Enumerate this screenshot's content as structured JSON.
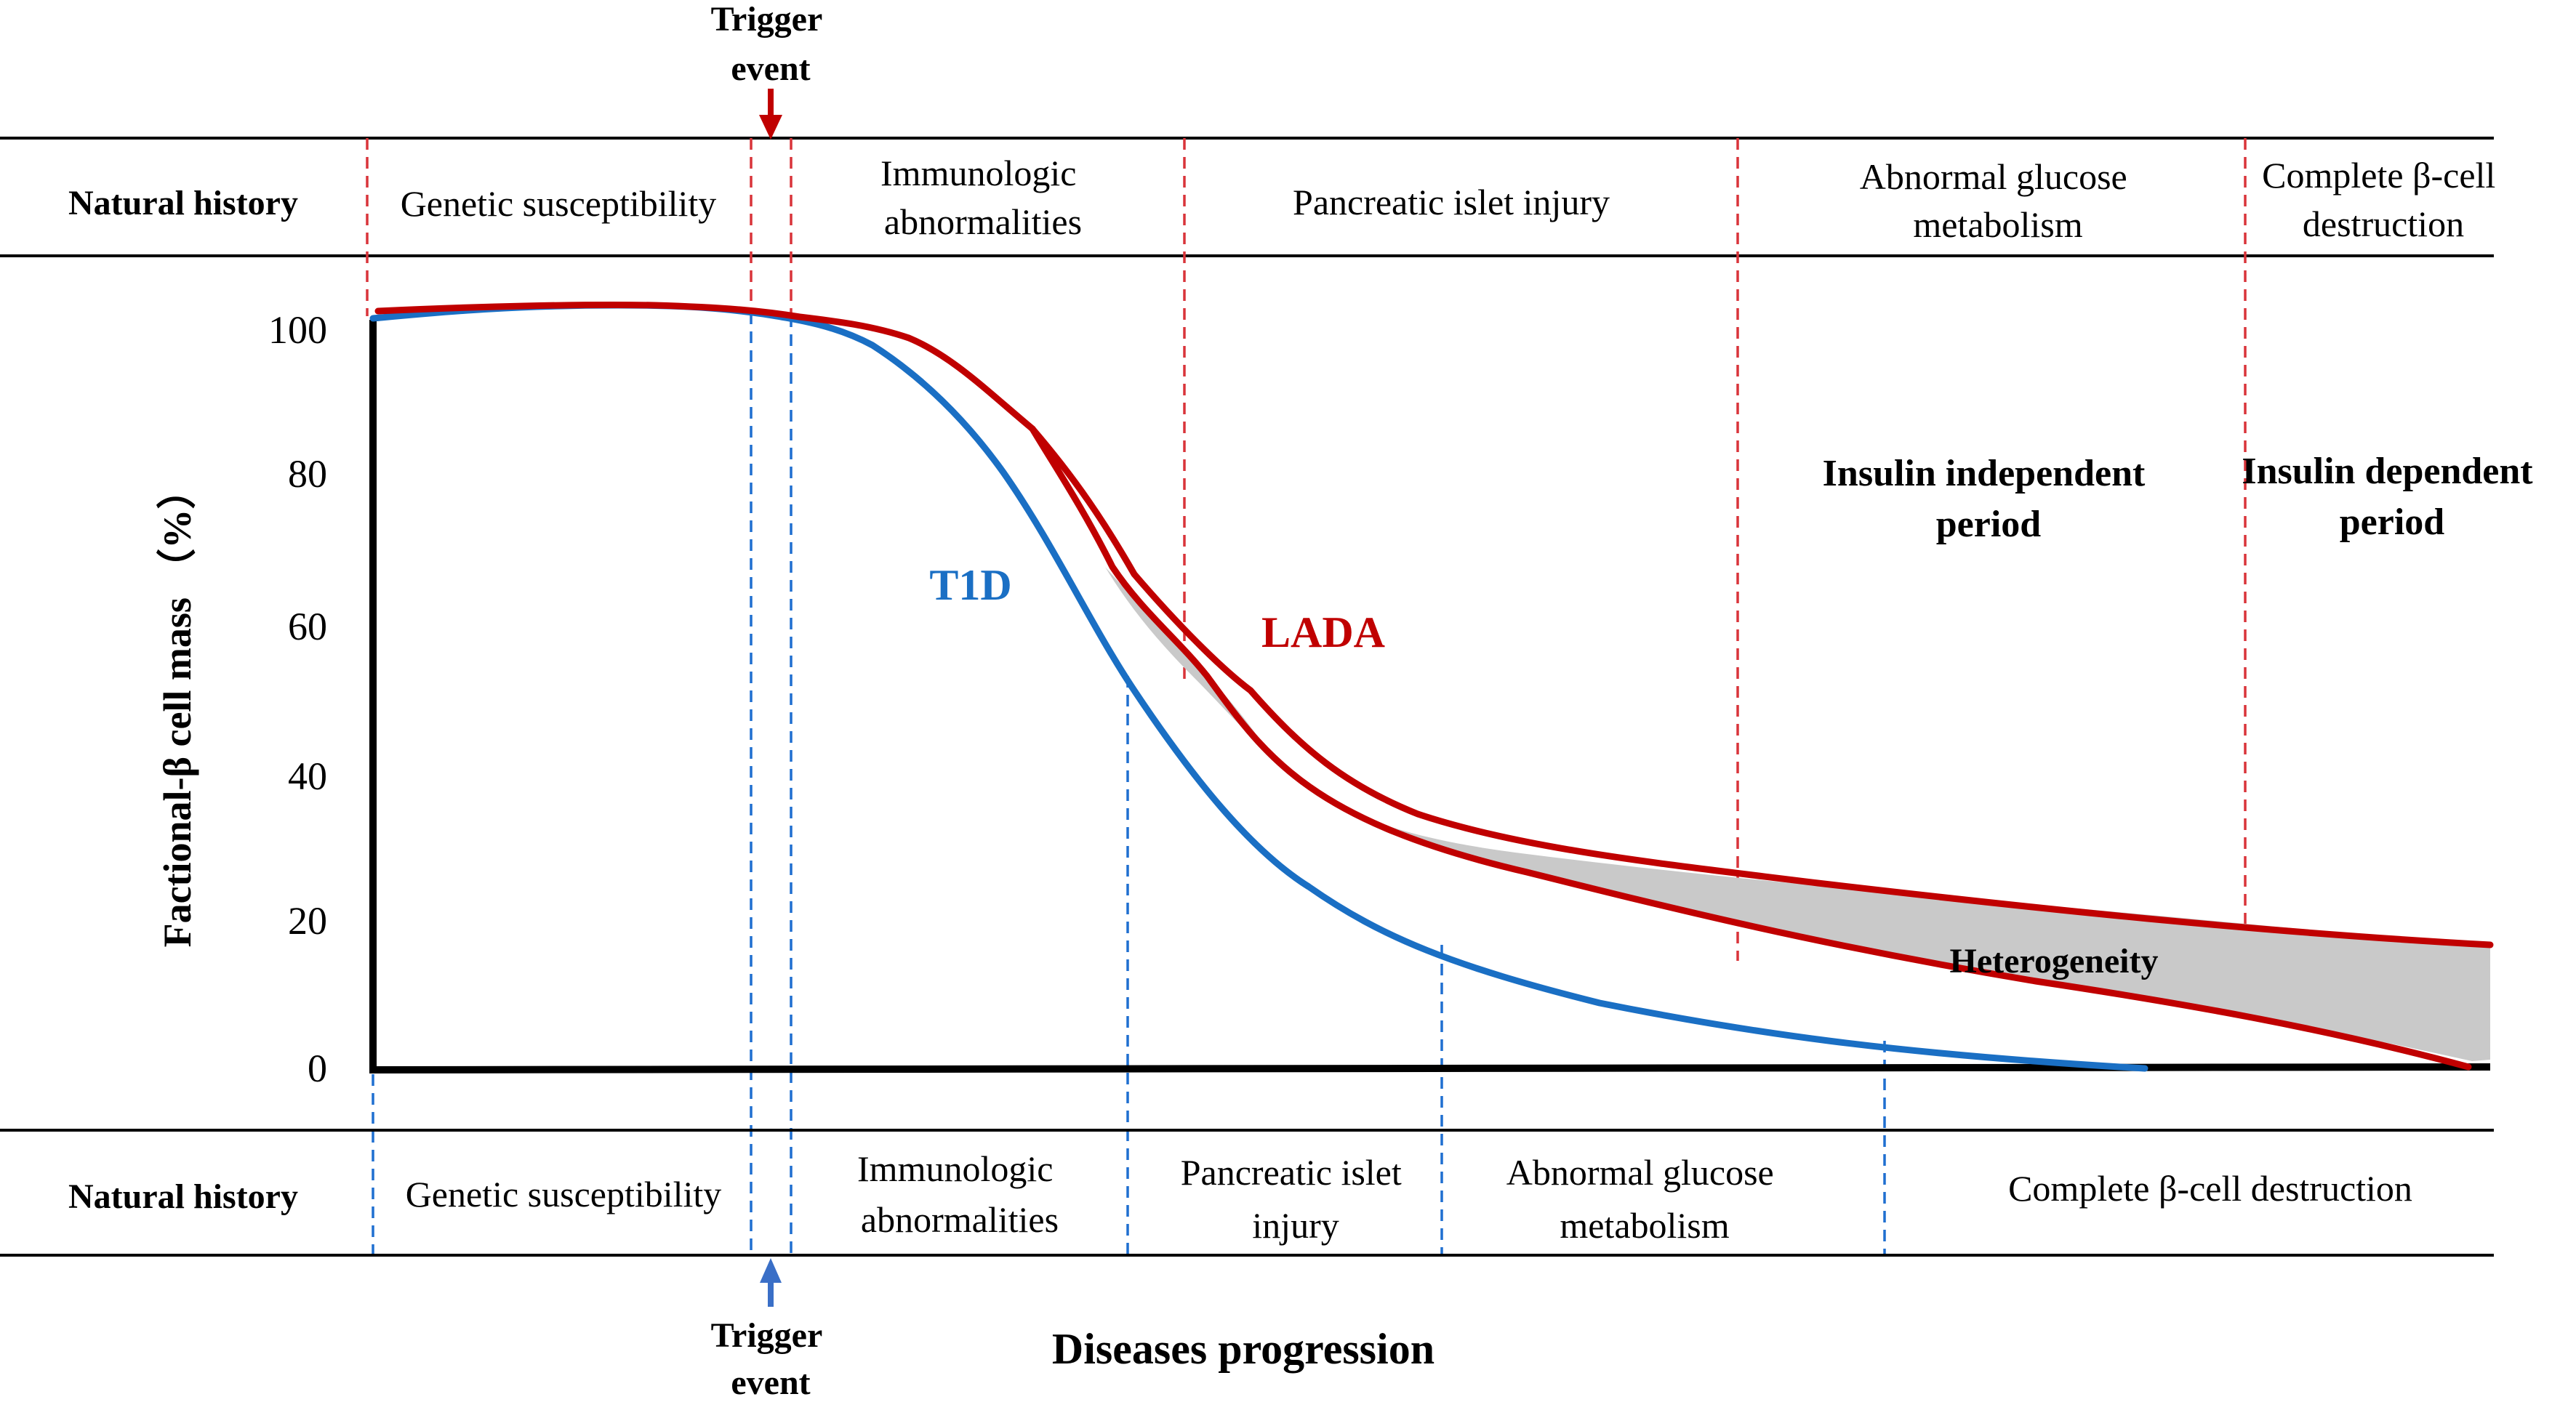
{
  "top_panel": {
    "row_label": "Natural history",
    "trigger": [
      "Trigger",
      "event"
    ],
    "stages": [
      {
        "lines": [
          "Genetic susceptibility"
        ]
      },
      {
        "lines": [
          "Immunologic",
          "abnormalities"
        ]
      },
      {
        "lines": [
          "Pancreatic islet injury"
        ]
      },
      {
        "lines": [
          "Abnormal glucose",
          "metabolism"
        ]
      },
      {
        "lines": [
          "Complete β-cell",
          "destruction"
        ]
      }
    ]
  },
  "bottom_panel": {
    "row_label": "Natural history",
    "trigger": [
      "Trigger",
      "event"
    ],
    "stages": [
      {
        "lines": [
          "Genetic susceptibility"
        ]
      },
      {
        "lines": [
          "Immunologic",
          "abnormalities"
        ]
      },
      {
        "lines": [
          "Pancreatic islet",
          "injury"
        ]
      },
      {
        "lines": [
          "Abnormal glucose",
          "metabolism"
        ]
      },
      {
        "lines": [
          "Complete β-cell destruction"
        ]
      }
    ]
  },
  "chart": {
    "ylabel": "Factional-β cell mass （%）",
    "xlabel": "Diseases progression",
    "yticks": [
      "100",
      "80",
      "60",
      "40",
      "20",
      "0"
    ],
    "series_labels": {
      "t1d": "T1D",
      "lada": "LADA"
    },
    "band_label": "Heterogeneity",
    "period_labels": [
      {
        "lines": [
          "Insulin independent",
          "period"
        ]
      },
      {
        "lines": [
          "Insulin dependent",
          "period"
        ]
      }
    ]
  },
  "colors": {
    "t1d": "#1a6fc4",
    "lada": "#c00000",
    "band": "#c9c9c9",
    "axis": "#000000",
    "text": "#000000"
  }
}
